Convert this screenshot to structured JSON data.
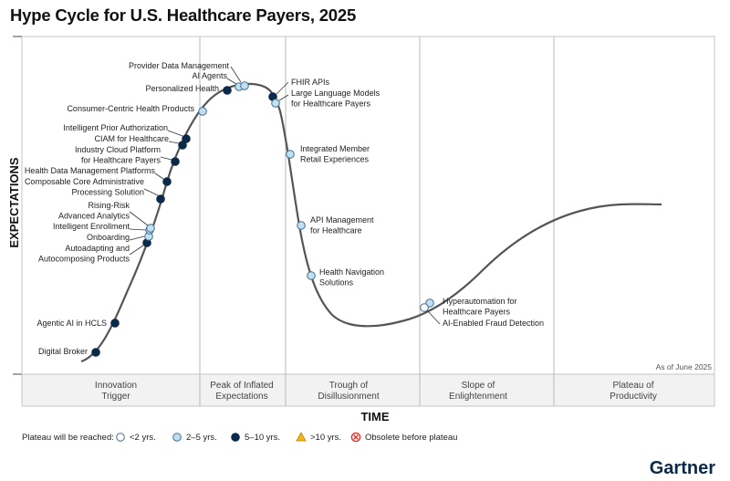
{
  "title": "Hype Cycle for U.S. Healthcare Payers, 2025",
  "y_axis_label": "EXPECTATIONS",
  "x_axis_label": "TIME",
  "as_of": "As of June 2025",
  "brand": "Gartner",
  "phases": [
    {
      "line1": "Innovation",
      "line2": "Trigger"
    },
    {
      "line1": "Peak of Inflated",
      "line2": "Expectations"
    },
    {
      "line1": "Trough of",
      "line2": "Disillusionment"
    },
    {
      "line1": "Slope of",
      "line2": "Enlightenment"
    },
    {
      "line1": "Plateau of",
      "line2": "Productivity"
    }
  ],
  "legend": {
    "prefix": "Plateau will be reached:",
    "items": [
      {
        "label": "<2 yrs.",
        "kind": "lt2",
        "color": "#ffffff"
      },
      {
        "label": "2–5 yrs.",
        "kind": "2to5",
        "color": "#bfe0f2"
      },
      {
        "label": "5–10 yrs.",
        "kind": "5to10",
        "color": "#0b2a4a"
      },
      {
        "label": ">10 yrs.",
        "kind": "gt10",
        "color": "#f3b51b"
      },
      {
        "label": "Obsolete before plateau",
        "kind": "obsolete",
        "color": "#e0332d"
      }
    ]
  },
  "technologies": [
    {
      "name": "Digital Broker",
      "lines": [
        "Digital Broker"
      ],
      "horizon": "5to10"
    },
    {
      "name": "Agentic AI in HCLS",
      "lines": [
        "Agentic AI in HCLS"
      ],
      "horizon": "5to10"
    },
    {
      "name": "Autoadapting and Autocomposing Products",
      "lines": [
        "Autoadapting and",
        "Autocomposing Products"
      ],
      "horizon": "5to10"
    },
    {
      "name": "Onboarding",
      "lines": [
        "Onboarding"
      ],
      "horizon": "2to5"
    },
    {
      "name": "Intelligent Enrollment",
      "lines": [
        "Intelligent Enrollment"
      ],
      "horizon": "2to5"
    },
    {
      "name": "Rising-Risk Advanced Analytics",
      "lines": [
        "Rising-Risk",
        "Advanced Analytics"
      ],
      "horizon": "2to5"
    },
    {
      "name": "Composable Core Administrative Processing Solution",
      "lines": [
        "Composable Core Administrative",
        "Processing Solution"
      ],
      "horizon": "5to10"
    },
    {
      "name": "Health Data Management Platforms",
      "lines": [
        "Health Data Management Platforms"
      ],
      "horizon": "5to10"
    },
    {
      "name": "Industry Cloud Platform for Healthcare Payers",
      "lines": [
        "Industry Cloud Platform",
        "for Healthcare Payers"
      ],
      "horizon": "5to10"
    },
    {
      "name": "CIAM for Healthcare",
      "lines": [
        "CIAM for Healthcare"
      ],
      "horizon": "5to10"
    },
    {
      "name": "Intelligent Prior Authorization",
      "lines": [
        "Intelligent Prior Authorization"
      ],
      "horizon": "5to10"
    },
    {
      "name": "Consumer-Centric Health Products",
      "lines": [
        "Consumer-Centric Health Products"
      ],
      "horizon": "2to5"
    },
    {
      "name": "Personalized Health",
      "lines": [
        "Personalized Health"
      ],
      "horizon": "5to10"
    },
    {
      "name": "AI Agents",
      "lines": [
        "AI Agents"
      ],
      "horizon": "2to5"
    },
    {
      "name": "Provider Data Management",
      "lines": [
        "Provider Data Management"
      ],
      "horizon": "2to5"
    },
    {
      "name": "FHIR APIs",
      "lines": [
        "FHIR APIs"
      ],
      "horizon": "5to10"
    },
    {
      "name": "Large Language Models for Healthcare Payers",
      "lines": [
        "Large Language Models",
        "for Healthcare Payers"
      ],
      "horizon": "2to5"
    },
    {
      "name": "Integrated Member Retail Experiences",
      "lines": [
        "Integrated Member",
        "Retail Experiences"
      ],
      "horizon": "2to5"
    },
    {
      "name": "API Management for Healthcare",
      "lines": [
        "API Management",
        "for Healthcare"
      ],
      "horizon": "2to5"
    },
    {
      "name": "Health Navigation Solutions",
      "lines": [
        "Health Navigation",
        "Solutions"
      ],
      "horizon": "2to5"
    },
    {
      "name": "Hyperautomation for Healthcare Payers",
      "lines": [
        "Hyperautomation for",
        "Healthcare Payers"
      ],
      "horizon": "2to5"
    },
    {
      "name": "AI-Enabled Fraud Detection",
      "lines": [
        "AI-Enabled Fraud Detection"
      ],
      "horizon": "lt2"
    }
  ]
}
